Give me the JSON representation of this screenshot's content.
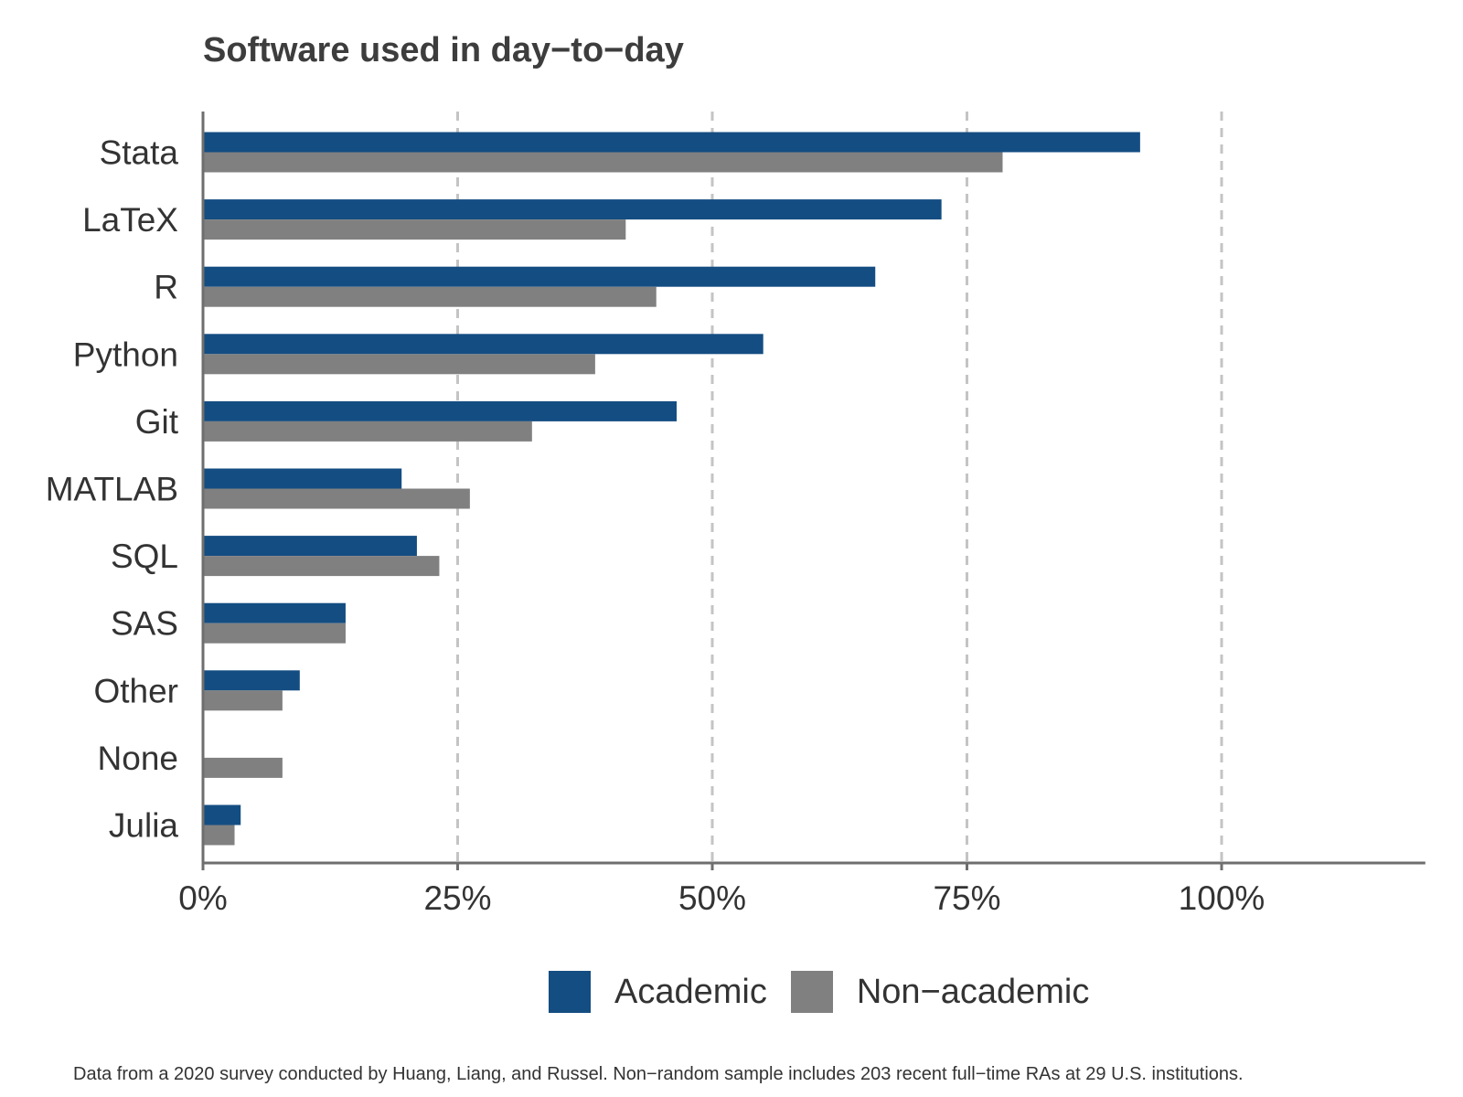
{
  "chart_data": {
    "type": "bar",
    "orientation": "horizontal",
    "title": "Software used in day−to−day",
    "categories": [
      "Stata",
      "LaTeX",
      "R",
      "Python",
      "Git",
      "MATLAB",
      "SQL",
      "SAS",
      "Other",
      "None",
      "Julia"
    ],
    "series": [
      {
        "name": "Academic",
        "color": "#144d82",
        "values": [
          92,
          72.5,
          66,
          55,
          46.5,
          19.5,
          21,
          14,
          9.5,
          0,
          3.7
        ]
      },
      {
        "name": "Non−academic",
        "color": "#808080",
        "values": [
          78.5,
          41.5,
          44.5,
          38.5,
          32.3,
          26.2,
          23.2,
          14,
          7.8,
          7.8,
          3.1
        ]
      }
    ],
    "xlim": [
      0,
      120
    ],
    "xticks": [
      0,
      25,
      50,
      75,
      100
    ],
    "xtick_labels": [
      "0%",
      "25%",
      "50%",
      "75%",
      "100%"
    ],
    "xlabel": "",
    "ylabel": "",
    "grid": "vertical dashed",
    "legend_position": "bottom"
  },
  "footnote": "Data from a 2020 survey conducted by Huang, Liang, and Russel. Non−random sample includes 203 recent full−time RAs at 29 U.S. institutions."
}
